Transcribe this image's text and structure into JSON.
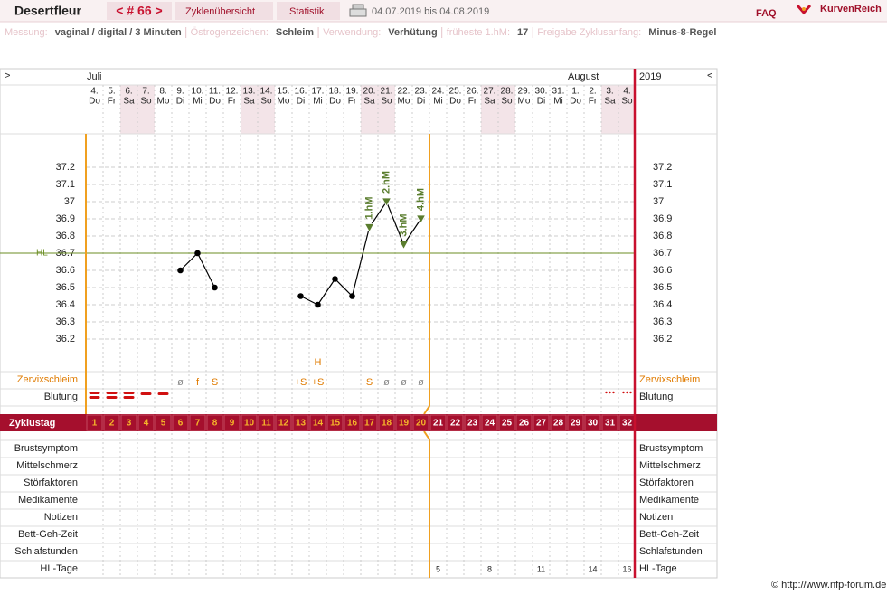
{
  "header": {
    "name": "Desertfleur",
    "cycle": "< # 66 >",
    "tabs": [
      "Zyklenübersicht",
      "Statistik"
    ],
    "range": "04.07.2019 bis 04.08.2019",
    "faq": "FAQ",
    "brand": "KurvenReich"
  },
  "info": [
    {
      "label": "Messung:",
      "value": "vaginal / digital / 3 Minuten"
    },
    {
      "label": "Östrogenzeichen:",
      "value": "Schleim"
    },
    {
      "label": "Verwendung:",
      "value": "Verhütung"
    },
    {
      "label": "früheste 1.hM:",
      "value": "17"
    },
    {
      "label": "Freigabe Zyklusanfang:",
      "value": "Minus-8-Regel"
    }
  ],
  "nav": {
    "prev": ">",
    "next": "<",
    "year": "2019"
  },
  "months": [
    "Juli",
    "August"
  ],
  "dates": [
    "4.",
    "5.",
    "6.",
    "7.",
    "8.",
    "9.",
    "10.",
    "11.",
    "12.",
    "13.",
    "14.",
    "15.",
    "16.",
    "17.",
    "18.",
    "19.",
    "20.",
    "21.",
    "22.",
    "23.",
    "24.",
    "25.",
    "26.",
    "27.",
    "28.",
    "29.",
    "30.",
    "31.",
    "1.",
    "2.",
    "3.",
    "4."
  ],
  "weekdays": [
    "Do",
    "Fr",
    "Sa",
    "So",
    "Mo",
    "Di",
    "Mi",
    "Do",
    "Fr",
    "Sa",
    "So",
    "Mo",
    "Di",
    "Mi",
    "Do",
    "Fr",
    "Sa",
    "So",
    "Mo",
    "Di",
    "Mi",
    "Do",
    "Fr",
    "Sa",
    "So",
    "Mo",
    "Di",
    "Mi",
    "Do",
    "Fr",
    "Sa",
    "So"
  ],
  "chart_data": {
    "type": "line",
    "zyklustag_label": "Zyklustag",
    "categories": [
      1,
      2,
      3,
      4,
      5,
      6,
      7,
      8,
      9,
      10,
      11,
      12,
      13,
      14,
      15,
      16,
      17,
      18,
      19,
      20,
      21,
      22,
      23,
      24,
      25,
      26,
      27,
      28,
      29,
      30,
      31,
      32
    ],
    "values": [
      null,
      null,
      null,
      null,
      null,
      36.6,
      36.7,
      36.5,
      null,
      null,
      null,
      null,
      36.45,
      36.4,
      36.55,
      36.45,
      36.85,
      37.0,
      36.75,
      36.9,
      null,
      null,
      null,
      null,
      null,
      null,
      null,
      null,
      null,
      null,
      null,
      null
    ],
    "point_labels": [
      null,
      null,
      null,
      null,
      null,
      null,
      null,
      null,
      null,
      null,
      null,
      null,
      null,
      null,
      null,
      null,
      "1.hM",
      "2.hM",
      "3.hM",
      "4.hM",
      null,
      null,
      null,
      null,
      null,
      null,
      null,
      null,
      null,
      null,
      null,
      null
    ],
    "ylim": [
      36.0,
      37.4
    ],
    "yticks": [
      36.2,
      36.3,
      36.4,
      36.5,
      36.6,
      36.7,
      36.8,
      36.9,
      37,
      37.1,
      37.2
    ],
    "hl": 36.7,
    "hl_label": "HL",
    "color": "#000000",
    "hm_color": "#5a7d2e",
    "grid": true
  },
  "zervix": {
    "label": "Zervixschleim",
    "values": [
      null,
      null,
      null,
      null,
      null,
      "ø",
      "f",
      "S",
      null,
      null,
      null,
      null,
      "+S",
      "+S",
      null,
      null,
      "S",
      "ø",
      "ø",
      "ø",
      null,
      null,
      null,
      null,
      null,
      null,
      null,
      null,
      null,
      null,
      null,
      null
    ],
    "peak": [
      null,
      null,
      null,
      null,
      null,
      null,
      null,
      null,
      null,
      null,
      null,
      null,
      null,
      "H",
      null,
      null,
      null,
      null,
      null,
      null,
      null,
      null,
      null,
      null,
      null,
      null,
      null,
      null,
      null,
      null,
      null,
      null
    ]
  },
  "blutung_label": "Blutung",
  "rows": [
    "Brustsymptom",
    "Mittelschmerz",
    "Störfaktoren",
    "Medikamente",
    "Notizen",
    "Bett-Geh-Zeit",
    "Schlafstunden"
  ],
  "hl_tage": {
    "label": "HL-Tage",
    "values": [
      null,
      null,
      null,
      null,
      null,
      null,
      null,
      null,
      null,
      null,
      null,
      null,
      null,
      null,
      null,
      null,
      null,
      null,
      null,
      null,
      5,
      null,
      null,
      8,
      null,
      null,
      11,
      null,
      null,
      14,
      null,
      16
    ]
  },
  "footer": "© http://www.nfp-forum.de"
}
